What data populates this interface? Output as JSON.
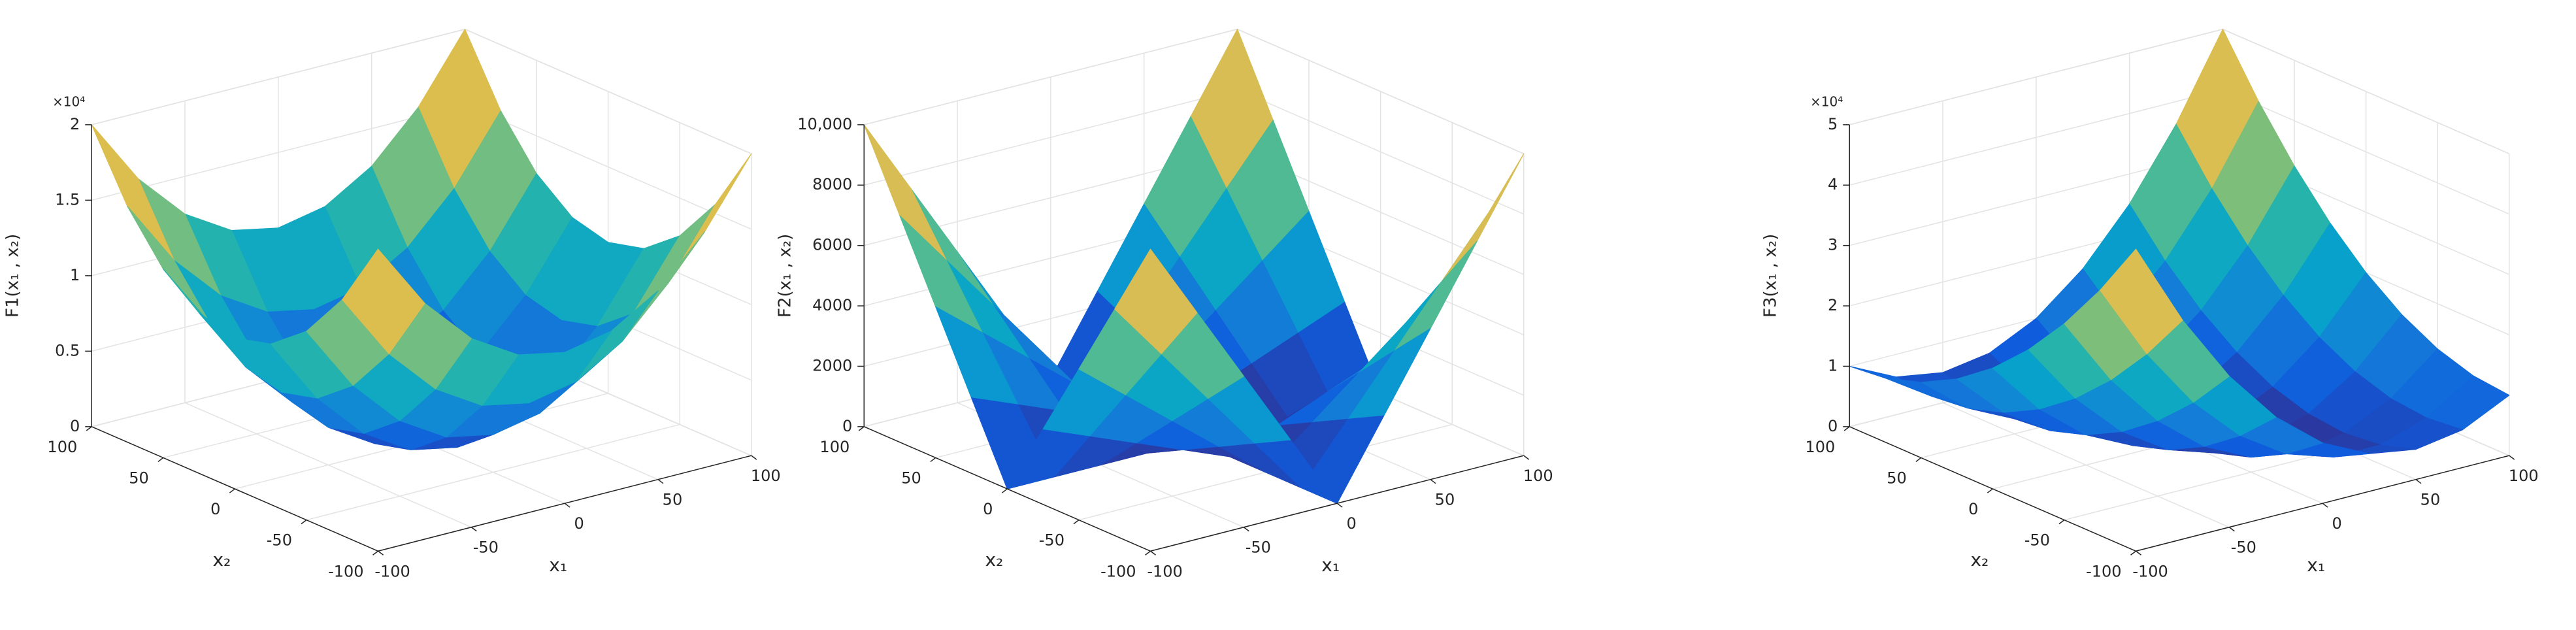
{
  "chart_data": [
    {
      "type": "surface",
      "zlabel": "F1(x₁ , x₂)",
      "xlabel": "x₁",
      "ylabel": "x₂",
      "z_multiplier": "×10⁴",
      "x": [
        -100,
        -75,
        -50,
        -25,
        0,
        25,
        50,
        75,
        100
      ],
      "y": [
        -100,
        -75,
        -50,
        -25,
        0,
        25,
        50,
        75,
        100
      ],
      "z": [
        [
          20000,
          15625,
          12500,
          10625,
          10000,
          10625,
          12500,
          15625,
          20000
        ],
        [
          15625,
          11250,
          8125,
          6250,
          5625,
          6250,
          8125,
          11250,
          15625
        ],
        [
          12500,
          8125,
          5000,
          3125,
          2500,
          3125,
          5000,
          8125,
          12500
        ],
        [
          10625,
          6250,
          3125,
          1250,
          625,
          1250,
          3125,
          6250,
          10625
        ],
        [
          10000,
          5625,
          2500,
          625,
          0,
          625,
          2500,
          5625,
          10000
        ],
        [
          10625,
          6250,
          3125,
          1250,
          625,
          1250,
          3125,
          6250,
          10625
        ],
        [
          12500,
          8125,
          5000,
          3125,
          2500,
          3125,
          5000,
          8125,
          12500
        ],
        [
          15625,
          11250,
          8125,
          6250,
          5625,
          6250,
          8125,
          11250,
          15625
        ],
        [
          20000,
          15625,
          12500,
          10625,
          10000,
          10625,
          12500,
          15625,
          20000
        ]
      ],
      "xlim": [
        -100,
        100
      ],
      "ylim": [
        -100,
        100
      ],
      "zlim": [
        0,
        20000
      ],
      "xticks": [
        -100,
        -50,
        0,
        50,
        100
      ],
      "yticks": [
        -100,
        -50,
        0,
        50,
        100
      ],
      "zticks": [
        0,
        {
          "value": 5000,
          "label": "0.5"
        },
        {
          "value": 10000,
          "label": "1"
        },
        {
          "value": 15000,
          "label": "1.5"
        },
        {
          "value": 20000,
          "label": "2"
        }
      ],
      "grid": true,
      "colormap": [
        "#352a87",
        "#0f5cdd",
        "#1481d6",
        "#06a4ca",
        "#2eb7a4",
        "#87bf77",
        "#d1bb59",
        "#fec832",
        "#f9fb0e"
      ]
    },
    {
      "type": "surface",
      "zlabel": "F2(x₁ , x₂)",
      "xlabel": "x₁",
      "ylabel": "x₂",
      "x": [
        -100,
        -75,
        -50,
        -25,
        0,
        25,
        50,
        75,
        100
      ],
      "y": [
        -100,
        -75,
        -50,
        -25,
        0,
        25,
        50,
        75,
        100
      ],
      "z": [
        [
          10000,
          7500,
          5000,
          2500,
          0,
          2500,
          5000,
          7500,
          10000
        ],
        [
          7500,
          5625,
          3750,
          1875,
          0,
          1875,
          3750,
          5625,
          7500
        ],
        [
          5000,
          3750,
          2500,
          1250,
          0,
          1250,
          2500,
          3750,
          5000
        ],
        [
          2500,
          1875,
          1250,
          625,
          0,
          625,
          1250,
          1875,
          2500
        ],
        [
          0,
          0,
          0,
          0,
          0,
          0,
          0,
          0,
          0
        ],
        [
          2500,
          1875,
          1250,
          625,
          0,
          625,
          1250,
          1875,
          2500
        ],
        [
          5000,
          3750,
          2500,
          1250,
          0,
          1250,
          2500,
          3750,
          5000
        ],
        [
          7500,
          5625,
          3750,
          1875,
          0,
          1875,
          3750,
          5625,
          7500
        ],
        [
          10000,
          7500,
          5000,
          2500,
          0,
          2500,
          5000,
          7500,
          10000
        ]
      ],
      "xlim": [
        -100,
        100
      ],
      "ylim": [
        -100,
        100
      ],
      "zlim": [
        0,
        10000
      ],
      "xticks": [
        -100,
        -50,
        0,
        50,
        100
      ],
      "yticks": [
        -100,
        -50,
        0,
        50,
        100
      ],
      "zticks": [
        0,
        2000,
        4000,
        6000,
        8000,
        {
          "value": 10000,
          "label": "10,000"
        }
      ],
      "grid": true,
      "colormap": [
        "#352a87",
        "#0f5cdd",
        "#1481d6",
        "#06a4ca",
        "#2eb7a4",
        "#87bf77",
        "#d1bb59",
        "#fec832",
        "#f9fb0e"
      ]
    },
    {
      "type": "surface",
      "zlabel": "F3(x₁ , x₂)",
      "xlabel": "x₁",
      "ylabel": "x₂",
      "z_multiplier": "×10⁴",
      "x": [
        -100,
        -75,
        -50,
        -25,
        0,
        25,
        50,
        75,
        100
      ],
      "y": [
        -100,
        -75,
        -50,
        -25,
        0,
        25,
        50,
        75,
        100
      ],
      "z": [
        [
          50000,
          36250,
          25000,
          16250,
          10000,
          6250,
          5000,
          6250,
          10000
        ],
        [
          40625,
          28125,
          18125,
          10625,
          5625,
          3125,
          3125,
          5625,
          10625
        ],
        [
          32500,
          21250,
          12500,
          6250,
          2500,
          1250,
          2500,
          6250,
          12500
        ],
        [
          25625,
          15625,
          8125,
          3125,
          625,
          625,
          3125,
          8125,
          15625
        ],
        [
          20000,
          11250,
          5000,
          1250,
          0,
          1250,
          5000,
          11250,
          20000
        ],
        [
          15625,
          8125,
          3125,
          625,
          625,
          3125,
          8125,
          15625,
          25625
        ],
        [
          12500,
          6250,
          2500,
          1250,
          2500,
          6250,
          12500,
          21250,
          32500
        ],
        [
          10625,
          5625,
          3125,
          3125,
          5625,
          10625,
          18125,
          28125,
          40625
        ],
        [
          10000,
          6250,
          5000,
          6250,
          10000,
          16250,
          25000,
          36250,
          50000
        ]
      ],
      "xlim": [
        -100,
        100
      ],
      "ylim": [
        -100,
        100
      ],
      "zlim": [
        0,
        50000
      ],
      "xticks": [
        -100,
        -50,
        0,
        50,
        100
      ],
      "yticks": [
        -100,
        -50,
        0,
        50,
        100
      ],
      "zticks": [
        0,
        {
          "value": 10000,
          "label": "1"
        },
        {
          "value": 20000,
          "label": "2"
        },
        {
          "value": 30000,
          "label": "3"
        },
        {
          "value": 40000,
          "label": "4"
        },
        {
          "value": 50000,
          "label": "5"
        }
      ],
      "grid": true,
      "colormap": [
        "#352a87",
        "#0f5cdd",
        "#1481d6",
        "#06a4ca",
        "#2eb7a4",
        "#87bf77",
        "#d1bb59",
        "#fec832",
        "#f9fb0e"
      ]
    }
  ]
}
